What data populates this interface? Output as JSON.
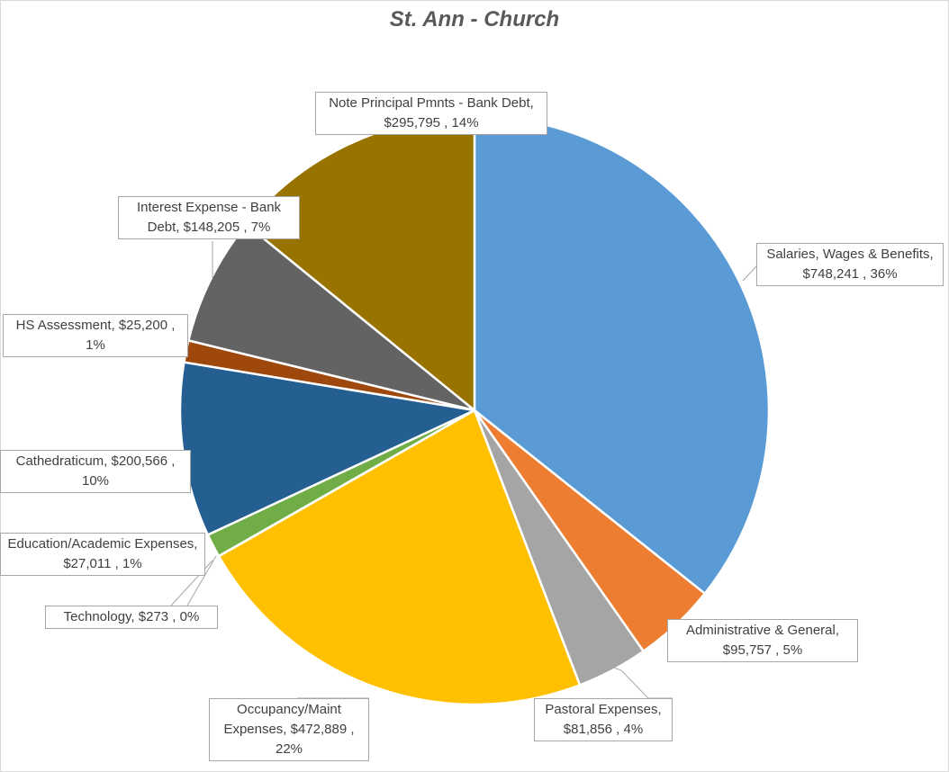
{
  "chart_data": {
    "type": "pie",
    "title": "St. Ann - Church",
    "slices": [
      {
        "name": "Salaries, Wages & Benefits",
        "value": 748241,
        "percent": 36,
        "color": "#5b9bd5",
        "label": "Salaries, Wages & Benefits, $748,241 , 36%"
      },
      {
        "name": "Administrative & General",
        "value": 95757,
        "percent": 5,
        "color": "#ed7d31",
        "label": "Administrative & General, $95,757 , 5%"
      },
      {
        "name": "Pastoral Expenses",
        "value": 81856,
        "percent": 4,
        "color": "#a5a5a5",
        "label": "Pastoral Expenses, $81,856 , 4%"
      },
      {
        "name": "Occupancy/Maint Expenses",
        "value": 472889,
        "percent": 22,
        "color": "#ffc000",
        "label": "Occupancy/Maint Expenses, $472,889 , 22%"
      },
      {
        "name": "Technology",
        "value": 273,
        "percent": 0,
        "color": "#4472c4",
        "label": "Technology, $273 , 0%"
      },
      {
        "name": "Education/Academic Expenses",
        "value": 27011,
        "percent": 1,
        "color": "#70ad47",
        "label": "Education/Academic Expenses, $27,011 , 1%"
      },
      {
        "name": "Cathedraticum",
        "value": 200566,
        "percent": 10,
        "color": "#255e91",
        "label": "Cathedraticum, $200,566 , 10%"
      },
      {
        "name": "HS Assessment",
        "value": 25200,
        "percent": 1,
        "color": "#9e480e",
        "label": "HS Assessment, $25,200 , 1%"
      },
      {
        "name": "Interest Expense - Bank Debt",
        "value": 148205,
        "percent": 7,
        "color": "#636363",
        "label": "Interest Expense - Bank Debt, $148,205 , 7%"
      },
      {
        "name": "Note Principal Pmnts - Bank Debt",
        "value": 295795,
        "percent": 14,
        "color": "#997300",
        "label": "Note Principal Pmnts - Bank Debt, $295,795 , 14%"
      }
    ]
  }
}
